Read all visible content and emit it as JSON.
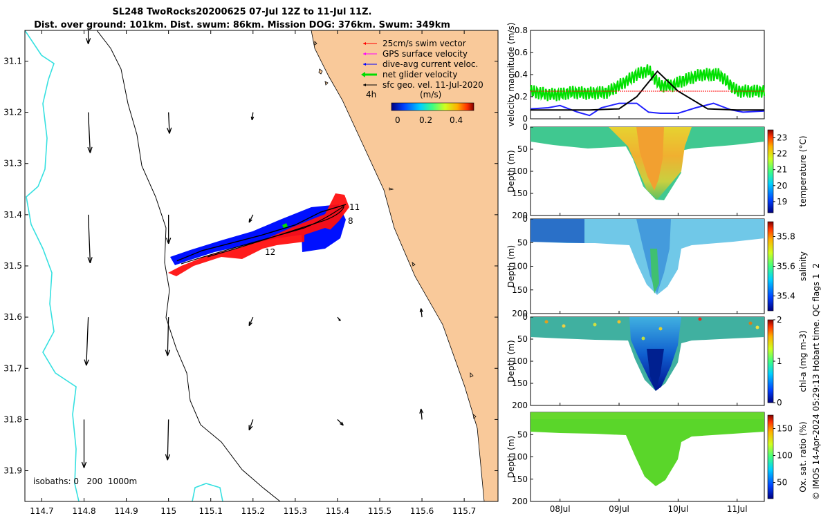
{
  "title": {
    "line1": "SL248 TwoRocks20200625 07-Jul 12Z to 11-Jul 11Z.",
    "line2": "Dist. over ground: 101km. Dist. swum: 86km. Mission DOG: 376km. Swum: 349km"
  },
  "colors": {
    "land": "#f9c99a",
    "swim": "#ff0000",
    "gps": "#ff00ff",
    "dive": "#0000ff",
    "net": "#00dd00",
    "geo": "#000000",
    "isobath_deep": "#35e0e0"
  },
  "chart_data": [
    {
      "type": "map",
      "name": "track-map",
      "xlim": [
        114.66,
        115.78
      ],
      "ylim": [
        31.96,
        31.04
      ],
      "x_ticks": [
        114.7,
        114.8,
        114.9,
        115,
        115.1,
        115.2,
        115.3,
        115.4,
        115.5,
        115.6,
        115.7
      ],
      "x_tick_labels": [
        "114.7",
        "114.8",
        "114.9",
        "115",
        "115.1",
        "115.2",
        "115.3",
        "115.4",
        "115.5",
        "115.6",
        "115.7"
      ],
      "y_ticks": [
        31.1,
        31.2,
        31.3,
        31.4,
        31.5,
        31.6,
        31.7,
        31.8,
        31.9
      ],
      "y_tick_labels": [
        "31.1",
        "31.2",
        "31.3",
        "31.4",
        "31.5",
        "31.6",
        "31.7",
        "31.8",
        "31.9"
      ],
      "legend": [
        {
          "label": "25cm/s swim vector",
          "color": "#ff0000"
        },
        {
          "label": "GPS surface velocity",
          "color": "#ff00ff"
        },
        {
          "label": "dive-avg current veloc.",
          "color": "#0000ff"
        },
        {
          "label": "net glider velocity",
          "color": "#00dd00"
        },
        {
          "label": "sfc geo. vel. 11-Jul-2020",
          "color": "#000000"
        }
      ],
      "legend_bold_date": "11",
      "colorbar": {
        "label": "(m/s)",
        "ticks": [
          "0",
          "0.2",
          "0.4"
        ],
        "vmin": 0,
        "vmax": 0.5
      },
      "time_step_label": "4h",
      "isobaths_label": "isobaths: 0   200  1000m",
      "track_labels": [
        {
          "text": "11",
          "lon": 115.42,
          "lat": 31.385
        },
        {
          "text": "8",
          "lon": 115.41,
          "lat": 31.41
        },
        {
          "text": "12",
          "lon": 115.21,
          "lat": 31.465
        }
      ],
      "geo_vectors": [
        {
          "lon": 114.81,
          "lat": 31.04,
          "u": 0,
          "v": -0.14
        },
        {
          "lon": 114.81,
          "lat": 31.2,
          "u": 0.02,
          "v": -0.42
        },
        {
          "lon": 114.81,
          "lat": 31.4,
          "u": 0.02,
          "v": -0.5
        },
        {
          "lon": 114.81,
          "lat": 31.6,
          "u": -0.02,
          "v": -0.5
        },
        {
          "lon": 114.8,
          "lat": 31.8,
          "u": 0,
          "v": -0.5
        },
        {
          "lon": 115.0,
          "lat": 31.2,
          "u": 0.01,
          "v": -0.22
        },
        {
          "lon": 115.0,
          "lat": 31.4,
          "u": 0.0,
          "v": -0.3
        },
        {
          "lon": 115.0,
          "lat": 31.6,
          "u": -0.01,
          "v": -0.4
        },
        {
          "lon": 115.0,
          "lat": 31.8,
          "u": -0.01,
          "v": -0.42
        },
        {
          "lon": 115.2,
          "lat": 31.2,
          "u": -0.01,
          "v": -0.08
        },
        {
          "lon": 115.2,
          "lat": 31.4,
          "u": -0.04,
          "v": -0.08
        },
        {
          "lon": 115.2,
          "lat": 31.6,
          "u": -0.04,
          "v": -0.09
        },
        {
          "lon": 115.2,
          "lat": 31.8,
          "u": -0.04,
          "v": -0.11
        },
        {
          "lon": 115.4,
          "lat": 31.6,
          "u": 0.03,
          "v": -0.04
        },
        {
          "lon": 115.4,
          "lat": 31.8,
          "u": 0.06,
          "v": -0.06
        },
        {
          "lon": 115.6,
          "lat": 31.6,
          "u": -0.01,
          "v": 0.09
        },
        {
          "lon": 115.6,
          "lat": 31.8,
          "u": -0.01,
          "v": 0.11
        }
      ],
      "glider_track": [
        [
          115.42,
          31.38
        ],
        [
          115.36,
          31.395
        ],
        [
          115.3,
          31.42
        ],
        [
          115.22,
          31.44
        ],
        [
          115.15,
          31.455
        ],
        [
          115.08,
          31.47
        ],
        [
          115.02,
          31.49
        ]
      ]
    },
    {
      "type": "line",
      "name": "velocity-panel",
      "ylabel": "velocity magnitude (m/s)",
      "ylim": [
        0,
        0.8
      ],
      "y_ticks": [
        "0",
        "0.2",
        "0.4",
        "0.6",
        "0.8"
      ],
      "x_tick_labels": [
        "08Jul",
        "09Jul",
        "10Jul",
        "11Jul"
      ],
      "xlim_days": [
        7.5,
        11.46
      ],
      "x_tick_days": [
        8,
        9,
        10,
        11
      ],
      "series": [
        {
          "name": "net glider velocity",
          "color": "#00e000",
          "t": [
            7.5,
            7.8,
            8.0,
            8.2,
            8.5,
            8.8,
            9.0,
            9.3,
            9.5,
            9.7,
            9.9,
            10.1,
            10.4,
            10.7,
            11.0,
            11.2,
            11.46
          ],
          "v": [
            0.25,
            0.22,
            0.22,
            0.24,
            0.23,
            0.24,
            0.3,
            0.4,
            0.44,
            0.3,
            0.3,
            0.35,
            0.4,
            0.4,
            0.25,
            0.25,
            0.25
          ]
        },
        {
          "name": "dive-avg current",
          "color": "#2020ff",
          "t": [
            7.5,
            7.8,
            8.0,
            8.3,
            8.5,
            8.7,
            9.0,
            9.3,
            9.5,
            9.7,
            10.0,
            10.3,
            10.6,
            10.9,
            11.1,
            11.46
          ],
          "v": [
            0.09,
            0.1,
            0.12,
            0.06,
            0.03,
            0.1,
            0.14,
            0.14,
            0.06,
            0.05,
            0.05,
            0.1,
            0.14,
            0.08,
            0.06,
            0.07
          ]
        },
        {
          "name": "sfc geo. vel.",
          "color": "#000000",
          "t": [
            7.5,
            8.0,
            8.5,
            9.0,
            9.3,
            9.65,
            10.0,
            10.5,
            11.0,
            11.46
          ],
          "v": [
            0.08,
            0.08,
            0.08,
            0.09,
            0.2,
            0.43,
            0.25,
            0.09,
            0.08,
            0.08
          ]
        },
        {
          "name": "swim speed",
          "color": "#ff0000",
          "t": [
            7.5,
            11.46
          ],
          "v": [
            0.25,
            0.25
          ]
        }
      ]
    },
    {
      "type": "heatmap",
      "name": "temperature-panel",
      "ylabel": "Depth (m)",
      "y_ticks": [
        "0",
        "50",
        "100",
        "150",
        "200"
      ],
      "colorbar_label": "temperature (°C)",
      "colorbar_ticks": [
        "19",
        "20",
        "21",
        "22",
        "23"
      ],
      "vmin": 18.3,
      "vmax": 23.5
    },
    {
      "type": "heatmap",
      "name": "salinity-panel",
      "ylabel": "Depth (m)",
      "y_ticks": [
        "0",
        "50",
        "100",
        "150",
        "200"
      ],
      "colorbar_label": "salinity",
      "colorbar_ticks": [
        "35.4",
        "35.6",
        "35.8"
      ],
      "vmin": 35.3,
      "vmax": 35.9
    },
    {
      "type": "heatmap",
      "name": "chla-panel",
      "ylabel": "Depth (m)",
      "y_ticks": [
        "0",
        "50",
        "100",
        "150",
        "200"
      ],
      "colorbar_label": "chl-a (mg m-3)",
      "colorbar_ticks": [
        "0",
        "1",
        "2"
      ],
      "vmin": 0,
      "vmax": 2
    },
    {
      "type": "heatmap",
      "name": "oxygen-panel",
      "ylabel": "Depth (m)",
      "y_ticks": [
        "50",
        "100",
        "150",
        "200"
      ],
      "colorbar_label": "Ox. sat. ratio (%)",
      "colorbar_ticks": [
        "50",
        "100",
        "150"
      ],
      "vmin": 20,
      "vmax": 175
    }
  ],
  "footer_note": "© IMOS 14-Apr-2024 05:29:13 Hobart time. QC flags 1  2"
}
